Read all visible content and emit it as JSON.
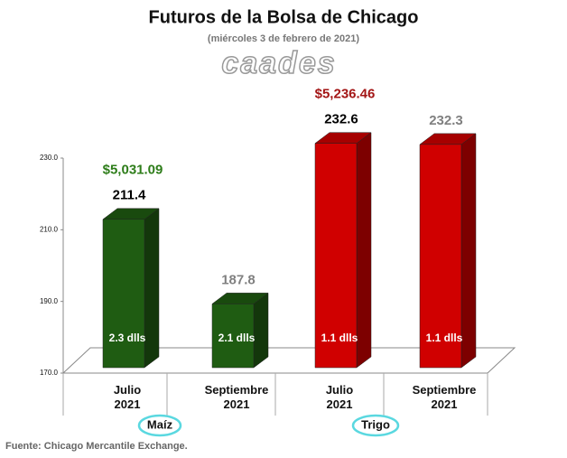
{
  "chart_data": {
    "type": "bar3d",
    "title": "Futuros de la Bolsa de Chicago",
    "subtitle": "(miércoles 3 de febrero de 2021)",
    "logo": "caades",
    "categories": [
      "Julio\n2021",
      "Septiembre\n2021",
      "Julio\n2021",
      "Septiembre\n2021"
    ],
    "values": [
      211.4,
      187.8,
      232.6,
      232.3
    ],
    "bar_colors": [
      "#1f5c12",
      "#1f5c12",
      "#d00000",
      "#d00000"
    ],
    "value_label_colors": [
      "#000000",
      "#808080",
      "#000000",
      "#808080"
    ],
    "price_labels": [
      "$5,031.09",
      null,
      "$5,236.46",
      null
    ],
    "price_colors": [
      "#2e7d1a",
      null,
      "#a31515",
      null
    ],
    "inner_labels": [
      "2.3 dlls",
      "2.1 dlls",
      "1.1 dlls",
      "1.1 dlls"
    ],
    "groups": [
      "Maíz",
      "Trigo"
    ],
    "ylim": [
      170,
      230
    ],
    "yticks": [
      {
        "value": 170,
        "label": "170.0"
      },
      {
        "value": 190,
        "label": "190.0"
      },
      {
        "value": 210,
        "label": "210.0"
      },
      {
        "value": 230,
        "label": "230.0"
      }
    ],
    "source": "Fuente: Chicago Mercantile Exchange."
  }
}
